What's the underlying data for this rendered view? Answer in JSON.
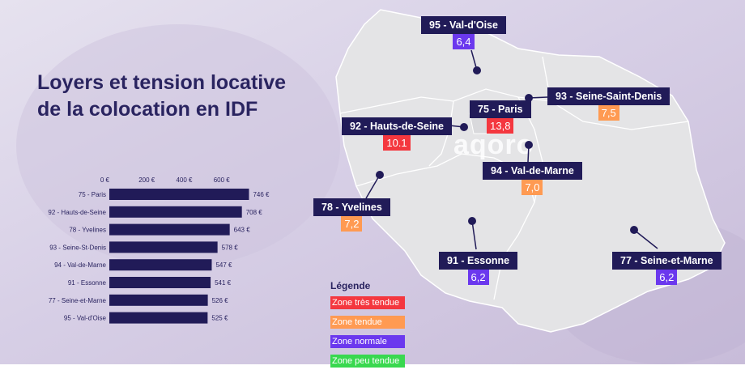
{
  "title_line1": "Loyers et tension locative",
  "title_line2": "de la colocation en IDF",
  "brand": "aqoro",
  "chart_data": {
    "type": "bar",
    "orientation": "horizontal",
    "categories": [
      "75 - Paris",
      "92 - Hauts-de-Seine",
      "78 - Yvelines",
      "93 - Seine-St-Denis",
      "94 - Val-de-Marne",
      "91 - Essonne",
      "77 - Seine-et-Marne",
      "95 - Val-d'Oise"
    ],
    "values": [
      746,
      708,
      643,
      578,
      547,
      541,
      526,
      525
    ],
    "value_labels": [
      "746 €",
      "708 €",
      "643 €",
      "578 €",
      "547 €",
      "541 €",
      "526 €",
      "525 €"
    ],
    "x_ticks": [
      0,
      200,
      400,
      600
    ],
    "x_tick_labels": [
      "0 €",
      "200 €",
      "400 €",
      "600 €"
    ],
    "xlim": [
      0,
      800
    ],
    "grid": false,
    "bar_color": "#211b58"
  },
  "map": {
    "departments": [
      {
        "name": "95 - Val-d'Oise",
        "value": "6,4",
        "zone": "normale"
      },
      {
        "name": "93 - Seine-Saint-Denis",
        "value": "7,5",
        "zone": "tendue"
      },
      {
        "name": "75 - Paris",
        "value": "13,8",
        "zone": "tres_tendue"
      },
      {
        "name": "92 - Hauts-de-Seine",
        "value": "10.1",
        "zone": "tres_tendue"
      },
      {
        "name": "94 - Val-de-Marne",
        "value": "7,0",
        "zone": "tendue"
      },
      {
        "name": "78 - Yvelines",
        "value": "7,2",
        "zone": "tendue"
      },
      {
        "name": "91 - Essonne",
        "value": "6,2",
        "zone": "normale"
      },
      {
        "name": "77 - Seine-et-Marne",
        "value": "6,2",
        "zone": "normale"
      }
    ]
  },
  "legend": {
    "title": "Légende",
    "items": [
      {
        "label": "Zone très tendue",
        "color": "#f4373f"
      },
      {
        "label": "Zone tendue",
        "color": "#ff9a52"
      },
      {
        "label": "Zone normale",
        "color": "#6b38ee"
      },
      {
        "label": "Zone peu tendue",
        "color": "#39d84f"
      }
    ]
  }
}
